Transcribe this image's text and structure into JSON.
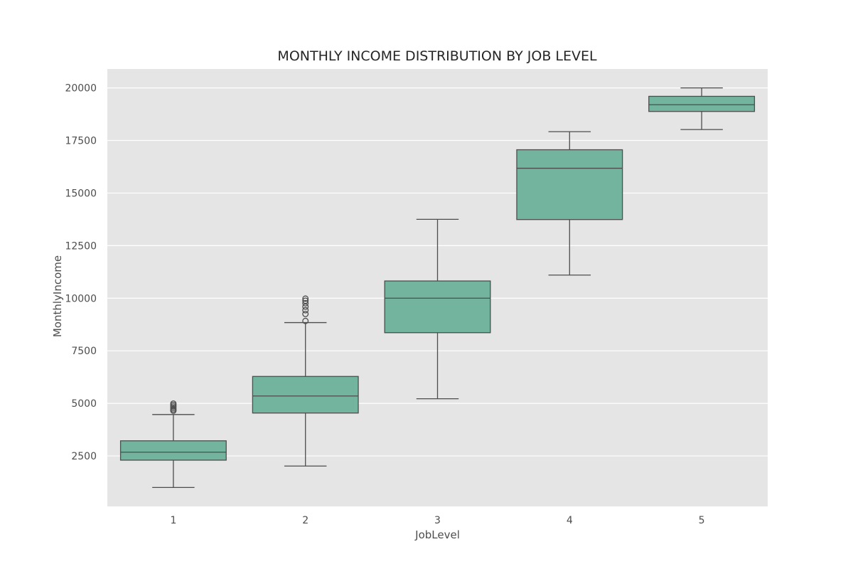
{
  "chart_data": {
    "type": "box",
    "title": "MONTHLY INCOME DISTRIBUTION BY JOB LEVEL",
    "xlabel": "JobLevel",
    "ylabel": "MonthlyIncome",
    "categories": [
      "1",
      "2",
      "3",
      "4",
      "5"
    ],
    "ylim": [
      100,
      20900
    ],
    "yticks": [
      2500,
      5000,
      7500,
      10000,
      12500,
      15000,
      17500,
      20000
    ],
    "grid": true,
    "background_color": "#e5e5e5",
    "box_color": "#73b49f",
    "line_color": "#4d4d4d",
    "boxes": [
      {
        "category": "1",
        "whisker_low": 1000,
        "q1": 2300,
        "median": 2680,
        "q3": 3220,
        "whisker_high": 4470,
        "outliers": [
          4650,
          4710,
          4780,
          4850,
          4920,
          4990
        ]
      },
      {
        "category": "2",
        "whisker_low": 2020,
        "q1": 4540,
        "median": 5350,
        "q3": 6280,
        "whisker_high": 8840,
        "outliers": [
          8920,
          9250,
          9430,
          9600,
          9760,
          9880,
          9980
        ]
      },
      {
        "category": "3",
        "whisker_low": 5220,
        "q1": 8360,
        "median": 10000,
        "q3": 10820,
        "whisker_high": 13750,
        "outliers": []
      },
      {
        "category": "4",
        "whisker_low": 11100,
        "q1": 13740,
        "median": 16180,
        "q3": 17060,
        "whisker_high": 17920,
        "outliers": []
      },
      {
        "category": "5",
        "whisker_low": 18020,
        "q1": 18880,
        "median": 19200,
        "q3": 19600,
        "whisker_high": 20000,
        "outliers": []
      }
    ]
  }
}
